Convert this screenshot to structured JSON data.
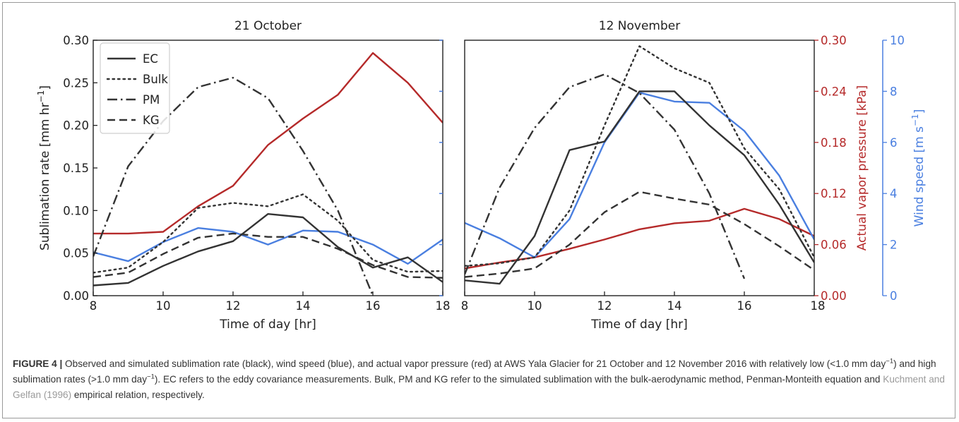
{
  "chart_data": [
    {
      "type": "line",
      "title": "21 October",
      "xlabel": "Time of day [hr]",
      "ylabel": "Sublimation rate [mm hr$^{-1}$]",
      "xlim": [
        8,
        18
      ],
      "ylim": [
        0,
        0.3
      ],
      "xticks": [
        "8",
        "10",
        "12",
        "14",
        "16",
        "18"
      ],
      "yticks": [
        "0.00",
        "0.05",
        "0.10",
        "0.15",
        "0.20",
        "0.25",
        "0.30"
      ],
      "legend": "top-left",
      "legend_entries": [
        "EC",
        "Bulk",
        "PM",
        "KG"
      ],
      "x": [
        8,
        9,
        10,
        11,
        12,
        13,
        14,
        15,
        16,
        17,
        18
      ],
      "series": [
        {
          "name": "EC",
          "axis": "left",
          "color": "#333333",
          "dash": "solid",
          "values": [
            0.012,
            0.015,
            0.035,
            0.052,
            0.064,
            0.096,
            0.092,
            0.057,
            0.033,
            0.045,
            0.016
          ]
        },
        {
          "name": "Bulk",
          "axis": "left",
          "color": "#333333",
          "dash": "dotted",
          "values": [
            0.027,
            0.033,
            0.063,
            0.103,
            0.109,
            0.105,
            0.119,
            0.088,
            0.042,
            0.028,
            0.029
          ]
        },
        {
          "name": "PM",
          "axis": "left",
          "color": "#333333",
          "dash": "dashdot",
          "values": [
            0.046,
            0.152,
            0.205,
            0.245,
            0.256,
            0.232,
            0.17,
            0.1,
            0.0,
            null,
            null
          ]
        },
        {
          "name": "KG",
          "axis": "left",
          "color": "#333333",
          "dash": "dashed",
          "values": [
            0.022,
            0.027,
            0.049,
            0.068,
            0.073,
            0.069,
            0.069,
            0.055,
            0.036,
            0.022,
            0.021
          ]
        },
        {
          "axis": "vapor",
          "color": "#b52a2a",
          "dash": "solid",
          "values": [
            0.073,
            0.073,
            0.075,
            0.105,
            0.129,
            0.177,
            0.208,
            0.236,
            0.285,
            0.25,
            0.203
          ]
        },
        {
          "axis": "wind",
          "color": "#4a7fe0",
          "dash": "solid",
          "values": [
            1.7,
            1.35,
            2.1,
            2.65,
            2.5,
            2.0,
            2.55,
            2.5,
            2.0,
            1.25,
            2.2
          ]
        }
      ]
    },
    {
      "type": "line",
      "title": "12 November",
      "xlabel": "Time of day [hr]",
      "ylabel": "",
      "xlim": [
        8,
        18
      ],
      "ylim": [
        0,
        0.3
      ],
      "xticks": [
        "8",
        "10",
        "12",
        "14",
        "16",
        "18"
      ],
      "y2label": "Actual vapor pressure [kPa]",
      "y2lim": [
        0,
        0.3
      ],
      "y2ticks": [
        "0.00",
        "0.06",
        "0.12",
        "0.18",
        "0.24",
        "0.30"
      ],
      "y3label": "Wind speed [m s$^{-1}$]",
      "y3lim": [
        0,
        10
      ],
      "y3ticks": [
        "0",
        "2",
        "4",
        "6",
        "8",
        "10"
      ],
      "x": [
        8,
        9,
        10,
        11,
        12,
        13,
        14,
        15,
        16,
        17,
        18
      ],
      "series": [
        {
          "name": "EC",
          "axis": "left",
          "color": "#333333",
          "dash": "solid",
          "values": [
            0.018,
            0.014,
            0.07,
            0.171,
            0.181,
            0.24,
            0.24,
            0.2,
            0.165,
            0.107,
            0.039
          ]
        },
        {
          "name": "Bulk",
          "axis": "left",
          "color": "#333333",
          "dash": "dotted",
          "values": [
            0.035,
            0.038,
            0.045,
            0.1,
            0.2,
            0.293,
            0.267,
            0.25,
            0.173,
            0.125,
            0.045
          ]
        },
        {
          "name": "PM",
          "axis": "left",
          "color": "#333333",
          "dash": "dashdot",
          "values": [
            0.025,
            0.127,
            0.197,
            0.245,
            0.26,
            0.238,
            0.195,
            0.12,
            0.02,
            null,
            null
          ]
        },
        {
          "name": "KG",
          "axis": "left",
          "color": "#333333",
          "dash": "dashed",
          "values": [
            0.022,
            0.026,
            0.032,
            0.06,
            0.098,
            0.122,
            0.114,
            0.107,
            0.084,
            0.058,
            0.03
          ]
        },
        {
          "axis": "vapor",
          "color": "#b52a2a",
          "dash": "solid",
          "values": [
            0.032,
            0.039,
            0.045,
            0.055,
            0.066,
            0.078,
            0.085,
            0.088,
            0.102,
            0.09,
            0.07
          ]
        },
        {
          "axis": "wind",
          "color": "#4a7fe0",
          "dash": "solid",
          "values": [
            2.85,
            2.25,
            1.5,
            3.0,
            6.0,
            7.95,
            7.6,
            7.55,
            6.45,
            4.7,
            2.2
          ]
        }
      ]
    }
  ],
  "caption": {
    "label": "FIGURE 4 |",
    "text_before": " Observed and simulated sublimation rate (black), wind speed (blue), and actual vapor pressure (red) at AWS Yala Glacier for 21 October and 12 November 2016 with relatively low (<1.0 mm day",
    "sup1": "−1",
    "text_mid": ") and high sublimation rates (>1.0 mm day",
    "sup2": "−1",
    "text_after": "). EC refers to the eddy covariance measurements. Bulk, PM and KG refer to the simulated sublimation with the bulk-aerodynamic method, Penman-Monteith equation and ",
    "citation": "Kuchment and Gelfan (1996)",
    "text_end": " empirical relation, respectively."
  },
  "colors": {
    "sublimation": "#333333",
    "vapor_pressure": "#b52a2a",
    "wind_speed": "#4a7fe0"
  }
}
